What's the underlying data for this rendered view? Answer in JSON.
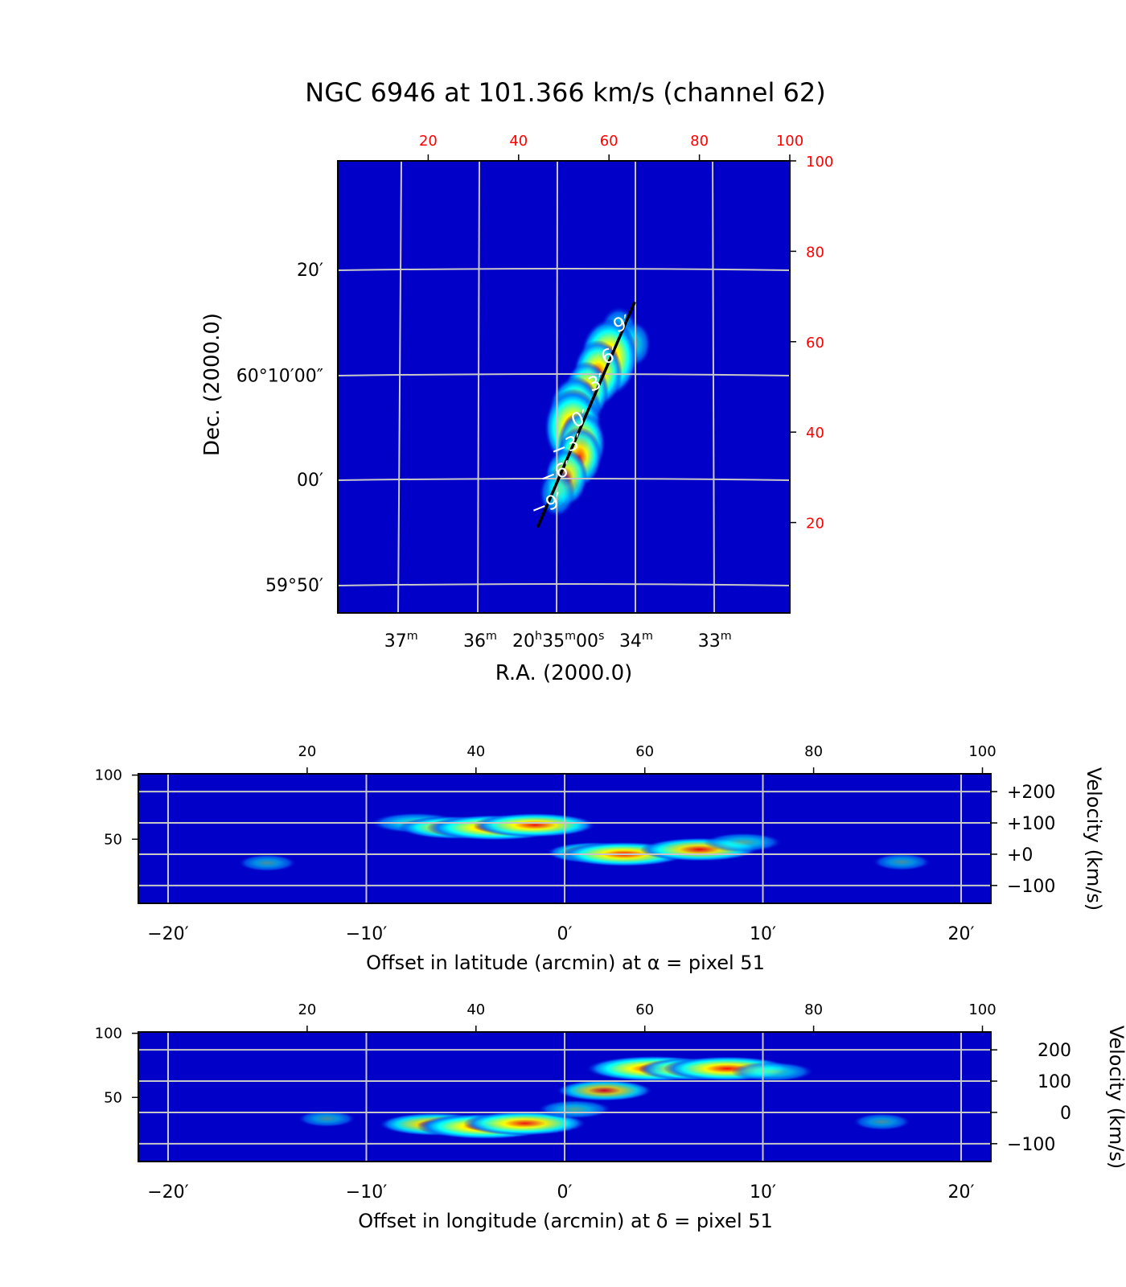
{
  "chart_data": [
    {
      "id": "channel-map",
      "type": "heatmap",
      "title": "NGC 6946 at 101.366 km/s (channel 62)",
      "xlabel": "R.A. (2000.0)",
      "ylabel": "Dec. (2000.0)",
      "colormap": "jet",
      "pixel_axes": {
        "top_ticks": [
          "20",
          "40",
          "60",
          "80",
          "100"
        ],
        "top_values": [
          20,
          40,
          60,
          80,
          100
        ],
        "right_ticks": [
          "100",
          "80",
          "60",
          "40",
          "20"
        ],
        "right_values": [
          100,
          80,
          60,
          40,
          20
        ],
        "range": [
          0,
          100
        ],
        "tick_color": "#ff0000"
      },
      "ra_ticks": [
        {
          "label": "37",
          "sup": "m",
          "pixel": 14
        },
        {
          "label": "36",
          "sup": "m",
          "pixel": 31.5
        },
        {
          "label": "20",
          "sup": "h",
          "label2": "35",
          "sup2": "m",
          "label3": "00",
          "sup3": "s",
          "pixel": 48.8
        },
        {
          "label": "34",
          "sup": "m",
          "pixel": 66
        },
        {
          "label": "33",
          "sup": "m",
          "pixel": 83.4
        }
      ],
      "dec_ticks": [
        {
          "label": "20′",
          "pixel": 76
        },
        {
          "label": "60°10′00″",
          "pixel": 52.6
        },
        {
          "label": "00′",
          "pixel": 29.5
        },
        {
          "label": "59°50′",
          "pixel": 6.2
        }
      ],
      "slice_line": {
        "start": [
          44.2,
          18.9
        ],
        "end": [
          65.7,
          68.8
        ],
        "ticks": [
          {
            "label": "−9′",
            "at": [
              47.3,
              23.9
            ]
          },
          {
            "label": "−6′",
            "at": [
              49.3,
              30.9
            ]
          },
          {
            "label": "−3′",
            "at": [
              51.7,
              36.9
            ]
          },
          {
            "label": "0′",
            "at": [
              54.6,
              42.9
            ]
          },
          {
            "label": "3′",
            "at": [
              58.3,
              50.9
            ]
          },
          {
            "label": "6′",
            "at": [
              61.2,
              56.9
            ]
          },
          {
            "label": "9′",
            "at": [
              63.9,
              63.9
            ]
          }
        ]
      },
      "emission": [
        {
          "x": 62.2,
          "y": 62.0,
          "intensity": 0.45
        },
        {
          "x": 65.5,
          "y": 59.5,
          "intensity": 0.3
        },
        {
          "x": 60.0,
          "y": 56.5,
          "intensity": 1.0
        },
        {
          "x": 57.5,
          "y": 53.0,
          "intensity": 0.75
        },
        {
          "x": 55.0,
          "y": 49.0,
          "intensity": 0.6
        },
        {
          "x": 52.5,
          "y": 44.5,
          "intensity": 0.85
        },
        {
          "x": 52.0,
          "y": 41.0,
          "intensity": 1.0
        },
        {
          "x": 54.0,
          "y": 37.5,
          "intensity": 0.7
        },
        {
          "x": 53.5,
          "y": 34.5,
          "intensity": 0.6
        },
        {
          "x": 50.5,
          "y": 30.0,
          "intensity": 0.55
        },
        {
          "x": 48.5,
          "y": 26.5,
          "intensity": 0.35
        }
      ]
    },
    {
      "id": "pv-latitude",
      "type": "heatmap",
      "xlabel": "Offset in latitude (arcmin) at α = pixel 51",
      "ylabel": "Velocity (km/s)",
      "colormap": "jet",
      "xlim": [
        -21.5,
        21.5
      ],
      "offset_ticks": [
        "−20′",
        "−10′",
        "0′",
        "10′",
        "20′"
      ],
      "offset_values": [
        -20,
        -10,
        0,
        10,
        20
      ],
      "top_ticks": [
        "20",
        "40",
        "60",
        "80",
        "100"
      ],
      "top_values": [
        20,
        40,
        60,
        80,
        100
      ],
      "left_ticks": [
        "100",
        "50"
      ],
      "left_values": [
        100,
        50
      ],
      "velocity_ticks": [
        "+200",
        "+100",
        "+0",
        "−100"
      ],
      "velocity_values": [
        200,
        100,
        0,
        -100
      ],
      "velocity_range": [
        -157,
        257
      ],
      "emission": [
        {
          "offset": -7.5,
          "velocity": 100,
          "intensity": 0.5
        },
        {
          "offset": -5.5,
          "velocity": 85,
          "intensity": 0.75
        },
        {
          "offset": -3.5,
          "velocity": 85,
          "intensity": 1.0
        },
        {
          "offset": -1.5,
          "velocity": 93,
          "intensity": 0.85
        },
        {
          "offset": 1.5,
          "velocity": 5,
          "intensity": 0.55
        },
        {
          "offset": 3.0,
          "velocity": 0,
          "intensity": 0.9
        },
        {
          "offset": 6.8,
          "velocity": 15,
          "intensity": 0.8
        },
        {
          "offset": 9.0,
          "velocity": 38,
          "intensity": 0.35
        },
        {
          "offset": -15.0,
          "velocity": -28,
          "intensity": 0.12
        },
        {
          "offset": 17.0,
          "velocity": -25,
          "intensity": 0.12
        }
      ]
    },
    {
      "id": "pv-longitude",
      "type": "heatmap",
      "xlabel": "Offset in longitude (arcmin) at δ = pixel 51",
      "ylabel": "Velocity (km/s)",
      "colormap": "jet",
      "xlim": [
        -21.5,
        21.5
      ],
      "offset_ticks": [
        "−20′",
        "−10′",
        "0′",
        "10′",
        "20′"
      ],
      "offset_values": [
        -20,
        -10,
        0,
        10,
        20
      ],
      "top_ticks": [
        "20",
        "40",
        "60",
        "80",
        "100"
      ],
      "top_values": [
        20,
        40,
        60,
        80,
        100
      ],
      "left_ticks": [
        "100",
        "50"
      ],
      "left_values": [
        100,
        50
      ],
      "velocity_ticks": [
        "200",
        "100",
        "0",
        "−100"
      ],
      "velocity_values": [
        200,
        100,
        0,
        -100
      ],
      "velocity_range": [
        -157,
        257
      ],
      "emission": [
        {
          "offset": -6.5,
          "velocity": -38,
          "intensity": 0.75
        },
        {
          "offset": -4.0,
          "velocity": -45,
          "intensity": 1.0
        },
        {
          "offset": -2.0,
          "velocity": -35,
          "intensity": 0.85
        },
        {
          "offset": 0.5,
          "velocity": 10,
          "intensity": 0.3
        },
        {
          "offset": 2.0,
          "velocity": 70,
          "intensity": 0.55
        },
        {
          "offset": 4.5,
          "velocity": 140,
          "intensity": 1.0
        },
        {
          "offset": 6.5,
          "velocity": 138,
          "intensity": 0.7
        },
        {
          "offset": 8.2,
          "velocity": 140,
          "intensity": 0.9
        },
        {
          "offset": 10.5,
          "velocity": 130,
          "intensity": 0.4
        },
        {
          "offset": -12.0,
          "velocity": -20,
          "intensity": 0.12
        },
        {
          "offset": 16.0,
          "velocity": -30,
          "intensity": 0.12
        }
      ]
    }
  ],
  "colors": {
    "background": "#0000c8",
    "grid": "#c8c8c8",
    "pixel_tick_red": "#ff0000"
  }
}
